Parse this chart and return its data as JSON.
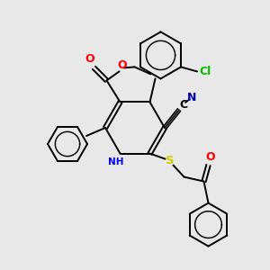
{
  "background_color": "#e8e8e8",
  "bond_color": "#000000",
  "figsize": [
    3.0,
    3.0
  ],
  "dpi": 100,
  "colors": {
    "O": "#ff0000",
    "N": "#0000ff",
    "S": "#cccc00",
    "Cl": "#00bb00",
    "CN_C": "#000000",
    "CN_N": "#0000bb"
  }
}
